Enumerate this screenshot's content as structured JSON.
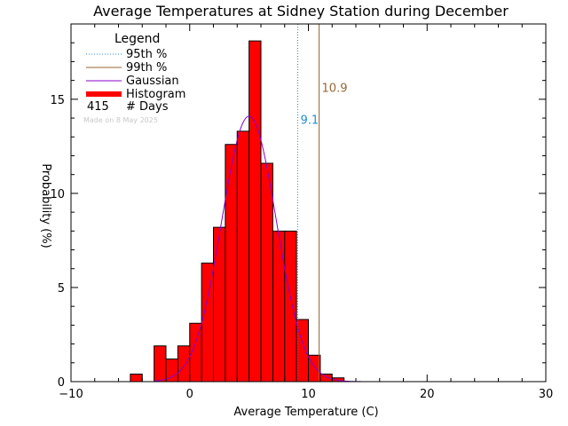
{
  "chart_data": {
    "type": "bar",
    "title": "Average Temperatures at Sidney Station during December",
    "xlabel": "Average Temperature (C)",
    "ylabel": "Probability (%)",
    "xlim": [
      -10,
      30
    ],
    "ylim": [
      0,
      19
    ],
    "x_ticks": [
      -10,
      0,
      10,
      20,
      30
    ],
    "x_tick_labels": [
      "−10",
      "0",
      "10",
      "20",
      "30"
    ],
    "y_ticks": [
      0,
      5,
      10,
      15
    ],
    "y_tick_labels": [
      "0",
      "5",
      "10",
      "15"
    ],
    "grid": false,
    "legend": {
      "title": "Legend",
      "placement": "top-left",
      "entries": [
        {
          "label": "95th %",
          "color": "#1f8fd6",
          "style": "dotted"
        },
        {
          "label": "99th %",
          "color": "#996633",
          "style": "solid"
        },
        {
          "label": "Gaussian",
          "color": "#8800cc",
          "style": "solid"
        },
        {
          "label": "Histogram",
          "color": "#ff0000",
          "style": "bar"
        }
      ],
      "count_value": "415",
      "count_label": "# Days",
      "made_on": "Made on 8 May 2025"
    },
    "histogram": {
      "bin_width": 1,
      "bin_starts": [
        -5,
        -4,
        -3,
        -2,
        -1,
        0,
        1,
        2,
        3,
        4,
        5,
        6,
        7,
        8,
        9,
        10,
        11,
        12
      ],
      "values": [
        0.4,
        0.0,
        1.9,
        1.2,
        1.9,
        3.1,
        6.3,
        8.2,
        12.6,
        13.3,
        18.1,
        11.6,
        8.0,
        8.0,
        3.3,
        1.4,
        0.4,
        0.2
      ],
      "color": "#ff0000"
    },
    "gaussian": {
      "mean": 5.0,
      "peak": 14.1,
      "sigma": 2.3,
      "x_range": [
        -3,
        15
      ],
      "color": "#8800cc"
    },
    "percentiles": [
      {
        "name": "95th %",
        "x": 9.1,
        "label": "9.1",
        "color": "#1f8fd6",
        "style": "dotted",
        "label_y": 13.7
      },
      {
        "name": "99th %",
        "x": 10.9,
        "label": "10.9",
        "color": "#996633",
        "style": "solid",
        "label_y": 15.4
      }
    ]
  }
}
